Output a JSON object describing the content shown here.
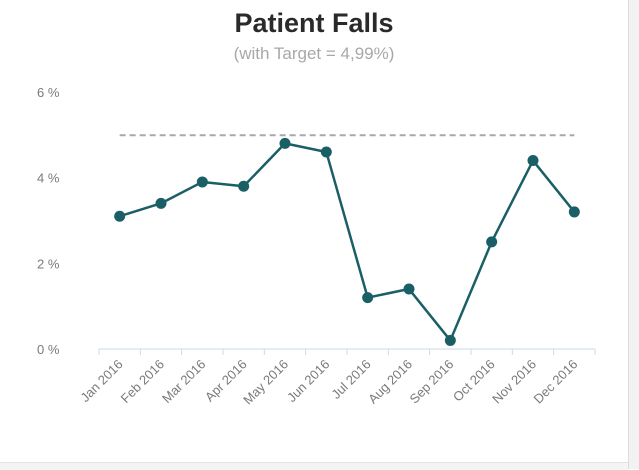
{
  "title": "Patient Falls",
  "subtitle": "(with Target = 4,99%)",
  "colors": {
    "line": "#1b5f66",
    "marker": "#1b5f66",
    "target": "#a8a8a8",
    "axis": "#c9dbe6"
  },
  "chart_data": {
    "type": "line",
    "title": "Patient Falls",
    "subtitle": "(with Target = 4,99%)",
    "xlabel": "",
    "ylabel": "",
    "categories": [
      "Jan 2016",
      "Feb 2016",
      "Mar 2016",
      "Apr 2016",
      "May 2016",
      "Jun 2016",
      "Jul 2016",
      "Aug 2016",
      "Sep 2016",
      "Oct 2016",
      "Nov 2016",
      "Dec 2016"
    ],
    "series": [
      {
        "values": [
          3.1,
          3.4,
          3.9,
          3.8,
          4.8,
          4.6,
          1.2,
          1.4,
          0.2,
          2.5,
          4.4,
          3.2
        ]
      }
    ],
    "target": 4.99,
    "ylim": [
      0,
      6
    ],
    "yticks": [
      0,
      2,
      4,
      6
    ],
    "ytick_labels": [
      "0 %",
      "2 %",
      "4 %",
      "6 %"
    ],
    "grid": false,
    "legend": "none"
  }
}
